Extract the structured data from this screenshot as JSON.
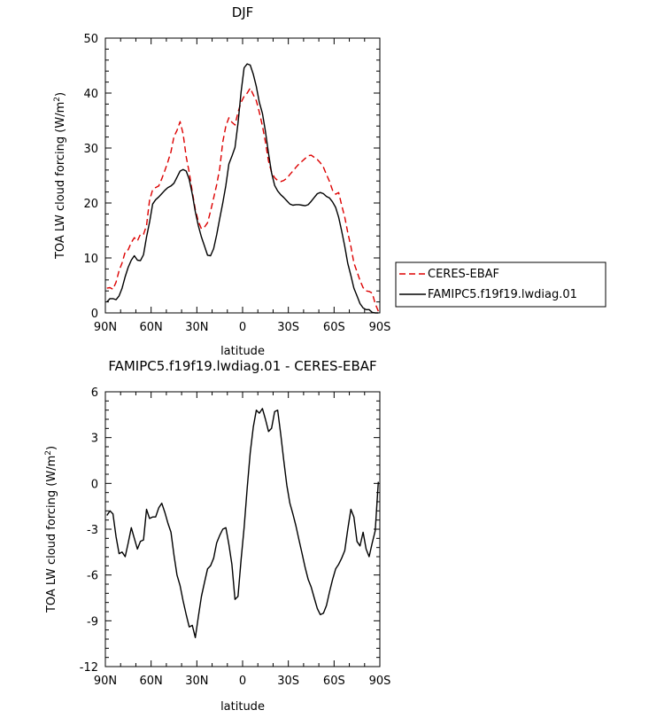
{
  "chart_data": [
    {
      "type": "line",
      "title": "DJF",
      "xlabel": "latitude",
      "ylabel": "TOA LW cloud forcing (W/m",
      "ylabel_sup": "2",
      "ylabel_end": ")",
      "xlim": [
        90,
        -90
      ],
      "ylim": [
        0,
        50
      ],
      "x_ticks": [
        90,
        60,
        30,
        0,
        -30,
        -60,
        -90
      ],
      "x_tick_labels": [
        "90N",
        "60N",
        "30N",
        "0",
        "30S",
        "60S",
        "90S"
      ],
      "y_ticks": [
        0,
        10,
        20,
        30,
        40,
        50
      ],
      "y_tick_labels": [
        "0",
        "10",
        "20",
        "30",
        "40",
        "50"
      ],
      "legend_position": "right",
      "series": [
        {
          "name": "CERES-EBAF",
          "color": "#dd0000",
          "dash": "dashed",
          "x": [
            89,
            87,
            85,
            83,
            81,
            79,
            77,
            75,
            73,
            71,
            69,
            67,
            65,
            63,
            61,
            59,
            57,
            55,
            53,
            51,
            49,
            47,
            45,
            43,
            41,
            39,
            37,
            35,
            33,
            31,
            29,
            27,
            25,
            23,
            21,
            19,
            17,
            15,
            13,
            11,
            9,
            7,
            5,
            3,
            1,
            -1,
            -3,
            -5,
            -7,
            -9,
            -11,
            -13,
            -15,
            -17,
            -19,
            -21,
            -23,
            -25,
            -27,
            -29,
            -31,
            -33,
            -35,
            -37,
            -39,
            -41,
            -43,
            -45,
            -47,
            -49,
            -51,
            -53,
            -55,
            -57,
            -59,
            -61,
            -63,
            -65,
            -67,
            -69,
            -71,
            -73,
            -75,
            -77,
            -79,
            -81,
            -83,
            -85,
            -87,
            -89
          ],
          "y": [
            4.5,
            4.6,
            4.3,
            5.6,
            7.7,
            9.1,
            11.1,
            11.5,
            12.8,
            13.7,
            13.1,
            14.3,
            14.3,
            15.9,
            20.5,
            22.4,
            22.8,
            23.1,
            24.4,
            25.9,
            27.5,
            29.3,
            32.1,
            33.2,
            34.8,
            32.6,
            28.4,
            25.6,
            22.0,
            18.8,
            16.6,
            15.3,
            15.6,
            16.4,
            18.5,
            20.9,
            23.3,
            26.3,
            31.1,
            34.0,
            35.5,
            34.7,
            34.2,
            36.5,
            38.3,
            39.4,
            40.0,
            40.9,
            39.7,
            38.6,
            36.5,
            34.0,
            31.1,
            27.6,
            25.6,
            24.6,
            24.1,
            23.9,
            24.1,
            24.5,
            25.2,
            25.8,
            26.5,
            27.1,
            27.6,
            28.1,
            28.6,
            28.7,
            28.3,
            27.9,
            27.3,
            26.5,
            25.2,
            23.9,
            22.3,
            21.6,
            21.9,
            19.6,
            17.4,
            14.6,
            12.1,
            9.1,
            7.5,
            5.9,
            4.6,
            4.0,
            3.9,
            3.6,
            1.7,
            0.3
          ]
        },
        {
          "name": "FAMIPC5.f19f19.lwdiag.01",
          "color": "#000000",
          "dash": "solid",
          "x": [
            89,
            87,
            85,
            83,
            81,
            79,
            77,
            75,
            73,
            71,
            69,
            67,
            65,
            63,
            61,
            59,
            57,
            55,
            53,
            51,
            49,
            47,
            45,
            43,
            41,
            39,
            37,
            35,
            33,
            31,
            29,
            27,
            25,
            23,
            21,
            19,
            17,
            15,
            13,
            11,
            9,
            7,
            5,
            3,
            1,
            -1,
            -3,
            -5,
            -7,
            -9,
            -11,
            -13,
            -15,
            -17,
            -19,
            -21,
            -23,
            -25,
            -27,
            -29,
            -31,
            -33,
            -35,
            -37,
            -39,
            -41,
            -43,
            -45,
            -47,
            -49,
            -51,
            -53,
            -55,
            -57,
            -59,
            -61,
            -63,
            -65,
            -67,
            -69,
            -71,
            -73,
            -75,
            -77,
            -79,
            -81,
            -83,
            -85,
            -87,
            -89
          ],
          "y": [
            2.0,
            2.6,
            2.6,
            2.4,
            3.1,
            4.5,
            6.6,
            8.3,
            9.6,
            10.4,
            9.6,
            9.5,
            10.6,
            13.8,
            16.5,
            19.8,
            20.6,
            21.1,
            21.7,
            22.3,
            22.8,
            23.1,
            23.6,
            24.7,
            25.8,
            26.1,
            25.8,
            24.3,
            21.6,
            18.4,
            15.8,
            13.8,
            12.2,
            10.5,
            10.4,
            11.7,
            14.2,
            17.2,
            20.0,
            23.2,
            27.1,
            28.5,
            30.1,
            34.5,
            40.2,
            44.6,
            45.3,
            45.1,
            43.4,
            41.2,
            38.3,
            36.3,
            33.0,
            29.0,
            25.5,
            23.2,
            22.2,
            21.5,
            21.0,
            20.4,
            19.8,
            19.6,
            19.7,
            19.7,
            19.6,
            19.5,
            19.7,
            20.3,
            21.0,
            21.7,
            21.9,
            21.7,
            21.2,
            20.9,
            20.2,
            19.2,
            17.4,
            14.9,
            12.1,
            9.0,
            6.8,
            4.5,
            3.1,
            1.7,
            0.9,
            0.6,
            0.6,
            0.1,
            -0.1,
            -0.3
          ]
        }
      ]
    },
    {
      "type": "line",
      "title": "FAMIPC5.f19f19.lwdiag.01 - CERES-EBAF",
      "xlabel": "latitude",
      "ylabel": "TOA LW cloud forcing (W/m",
      "ylabel_sup": "2",
      "ylabel_end": ")",
      "xlim": [
        90,
        -90
      ],
      "ylim": [
        -12,
        6
      ],
      "x_ticks": [
        90,
        60,
        30,
        0,
        -30,
        -60,
        -90
      ],
      "x_tick_labels": [
        "90N",
        "60N",
        "30N",
        "0",
        "30S",
        "60S",
        "90S"
      ],
      "y_ticks": [
        -12,
        -9,
        -6,
        -3,
        0,
        3,
        6
      ],
      "y_tick_labels": [
        "-12",
        "-9",
        "-6",
        "-3",
        "0",
        "3",
        "6"
      ],
      "series": [
        {
          "color": "#000000",
          "dash": "solid",
          "x": [
            89,
            87,
            85,
            83,
            81,
            79,
            77,
            75,
            73,
            71,
            69,
            67,
            65,
            63,
            61,
            59,
            57,
            55,
            53,
            51,
            49,
            47,
            45,
            43,
            41,
            39,
            37,
            35,
            33,
            31,
            29,
            27,
            25,
            23,
            21,
            19,
            17,
            15,
            13,
            11,
            9,
            7,
            5,
            3,
            1,
            -1,
            -3,
            -5,
            -7,
            -9,
            -11,
            -13,
            -15,
            -17,
            -19,
            -21,
            -23,
            -25,
            -27,
            -29,
            -31,
            -33,
            -35,
            -37,
            -39,
            -41,
            -43,
            -45,
            -47,
            -49,
            -51,
            -53,
            -55,
            -57,
            -59,
            -61,
            -63,
            -65,
            -67,
            -69,
            -71,
            -73,
            -75,
            -77,
            -79,
            -81,
            -83,
            -85,
            -87,
            -89
          ],
          "y": [
            -2.1,
            -1.8,
            -2.0,
            -3.5,
            -4.6,
            -4.5,
            -4.8,
            -3.9,
            -2.9,
            -3.6,
            -4.3,
            -3.8,
            -3.7,
            -1.7,
            -2.3,
            -2.2,
            -2.2,
            -1.6,
            -1.3,
            -1.9,
            -2.6,
            -3.2,
            -4.7,
            -6.0,
            -6.7,
            -7.7,
            -8.6,
            -9.4,
            -9.3,
            -10.1,
            -8.7,
            -7.4,
            -6.5,
            -5.6,
            -5.4,
            -4.9,
            -3.9,
            -3.4,
            -3.0,
            -2.9,
            -4.0,
            -5.3,
            -7.6,
            -7.4,
            -5.0,
            -2.9,
            -0.3,
            2.0,
            3.7,
            4.8,
            4.6,
            4.9,
            4.2,
            3.4,
            3.6,
            4.7,
            4.8,
            3.2,
            1.5,
            -0.1,
            -1.3,
            -2.0,
            -2.8,
            -3.7,
            -4.6,
            -5.5,
            -6.3,
            -6.8,
            -7.5,
            -8.2,
            -8.6,
            -8.5,
            -8.0,
            -7.1,
            -6.3,
            -5.6,
            -5.3,
            -4.9,
            -4.4,
            -3.0,
            -1.7,
            -2.2,
            -3.8,
            -4.1,
            -3.2,
            -4.3,
            -4.8,
            -3.9,
            -3.1,
            0.1
          ]
        }
      ]
    }
  ]
}
